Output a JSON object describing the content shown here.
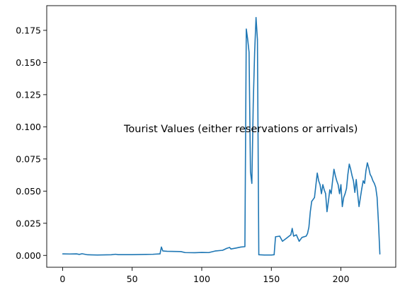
{
  "chart_data": {
    "type": "line",
    "title": "",
    "xlabel": "",
    "ylabel": "",
    "annotation": "Tourist Values (either reservations or arrivals)",
    "xlim": [
      -11.4,
      239.4
    ],
    "ylim": [
      -0.0092,
      0.1942
    ],
    "x_ticks": [
      0,
      50,
      100,
      150,
      200
    ],
    "x_tick_labels": [
      "0",
      "50",
      "100",
      "150",
      "200"
    ],
    "y_ticks": [
      0.0,
      0.025,
      0.05,
      0.075,
      0.1,
      0.125,
      0.15,
      0.175
    ],
    "y_tick_labels": [
      "0.000",
      "0.025",
      "0.050",
      "0.075",
      "0.100",
      "0.125",
      "0.150",
      "0.175"
    ],
    "grid": false,
    "legend": "none",
    "series": [
      {
        "color": "#1f77b4",
        "points": [
          [
            0,
            0.0012
          ],
          [
            5,
            0.0011
          ],
          [
            10,
            0.0012
          ],
          [
            12,
            0.0008
          ],
          [
            14,
            0.0013
          ],
          [
            16,
            0.0009
          ],
          [
            18,
            0.0005
          ],
          [
            25,
            0.0003
          ],
          [
            35,
            0.0005
          ],
          [
            38,
            0.0009
          ],
          [
            40,
            0.0006
          ],
          [
            50,
            0.0006
          ],
          [
            60,
            0.0008
          ],
          [
            65,
            0.0009
          ],
          [
            70,
            0.0012
          ],
          [
            71,
            0.0065
          ],
          [
            72,
            0.0035
          ],
          [
            75,
            0.0032
          ],
          [
            85,
            0.003
          ],
          [
            88,
            0.0022
          ],
          [
            95,
            0.0021
          ],
          [
            100,
            0.0023
          ],
          [
            105,
            0.0022
          ],
          [
            110,
            0.0035
          ],
          [
            115,
            0.004
          ],
          [
            118,
            0.0055
          ],
          [
            120,
            0.0062
          ],
          [
            121,
            0.005
          ],
          [
            125,
            0.0058
          ],
          [
            128,
            0.0065
          ],
          [
            131,
            0.0068
          ],
          [
            132,
            0.176
          ],
          [
            133,
            0.168
          ],
          [
            134,
            0.158
          ],
          [
            135,
            0.065
          ],
          [
            136,
            0.056
          ],
          [
            137,
            0.118
          ],
          [
            138,
            0.158
          ],
          [
            139,
            0.185
          ],
          [
            140,
            0.168
          ],
          [
            141,
            0.0005
          ],
          [
            145,
            0.0003
          ],
          [
            150,
            0.0003
          ],
          [
            152,
            0.0005
          ],
          [
            153,
            0.0145
          ],
          [
            156,
            0.015
          ],
          [
            158,
            0.011
          ],
          [
            161,
            0.0135
          ],
          [
            164,
            0.016
          ],
          [
            165,
            0.021
          ],
          [
            166,
            0.015
          ],
          [
            168,
            0.016
          ],
          [
            170,
            0.011
          ],
          [
            172,
            0.014
          ],
          [
            175,
            0.015
          ],
          [
            176,
            0.017
          ],
          [
            177,
            0.022
          ],
          [
            178,
            0.034
          ],
          [
            179,
            0.042
          ],
          [
            181,
            0.045
          ],
          [
            183,
            0.064
          ],
          [
            184,
            0.058
          ],
          [
            185,
            0.055
          ],
          [
            186,
            0.048
          ],
          [
            187,
            0.055
          ],
          [
            188,
            0.051
          ],
          [
            189,
            0.048
          ],
          [
            190,
            0.034
          ],
          [
            191,
            0.042
          ],
          [
            192,
            0.051
          ],
          [
            193,
            0.048
          ],
          [
            194,
            0.058
          ],
          [
            195,
            0.067
          ],
          [
            196,
            0.062
          ],
          [
            197,
            0.058
          ],
          [
            198,
            0.055
          ],
          [
            199,
            0.048
          ],
          [
            200,
            0.055
          ],
          [
            201,
            0.038
          ],
          [
            202,
            0.045
          ],
          [
            203,
            0.048
          ],
          [
            204,
            0.052
          ],
          [
            205,
            0.063
          ],
          [
            206,
            0.071
          ],
          [
            207,
            0.067
          ],
          [
            208,
            0.062
          ],
          [
            209,
            0.058
          ],
          [
            210,
            0.049
          ],
          [
            211,
            0.059
          ],
          [
            212,
            0.048
          ],
          [
            213,
            0.038
          ],
          [
            214,
            0.045
          ],
          [
            215,
            0.052
          ],
          [
            216,
            0.058
          ],
          [
            217,
            0.056
          ],
          [
            218,
            0.066
          ],
          [
            219,
            0.072
          ],
          [
            220,
            0.068
          ],
          [
            221,
            0.063
          ],
          [
            222,
            0.061
          ],
          [
            223,
            0.058
          ],
          [
            224,
            0.056
          ],
          [
            225,
            0.053
          ],
          [
            226,
            0.045
          ],
          [
            227,
            0.025
          ],
          [
            228,
            0.001
          ]
        ]
      }
    ]
  }
}
